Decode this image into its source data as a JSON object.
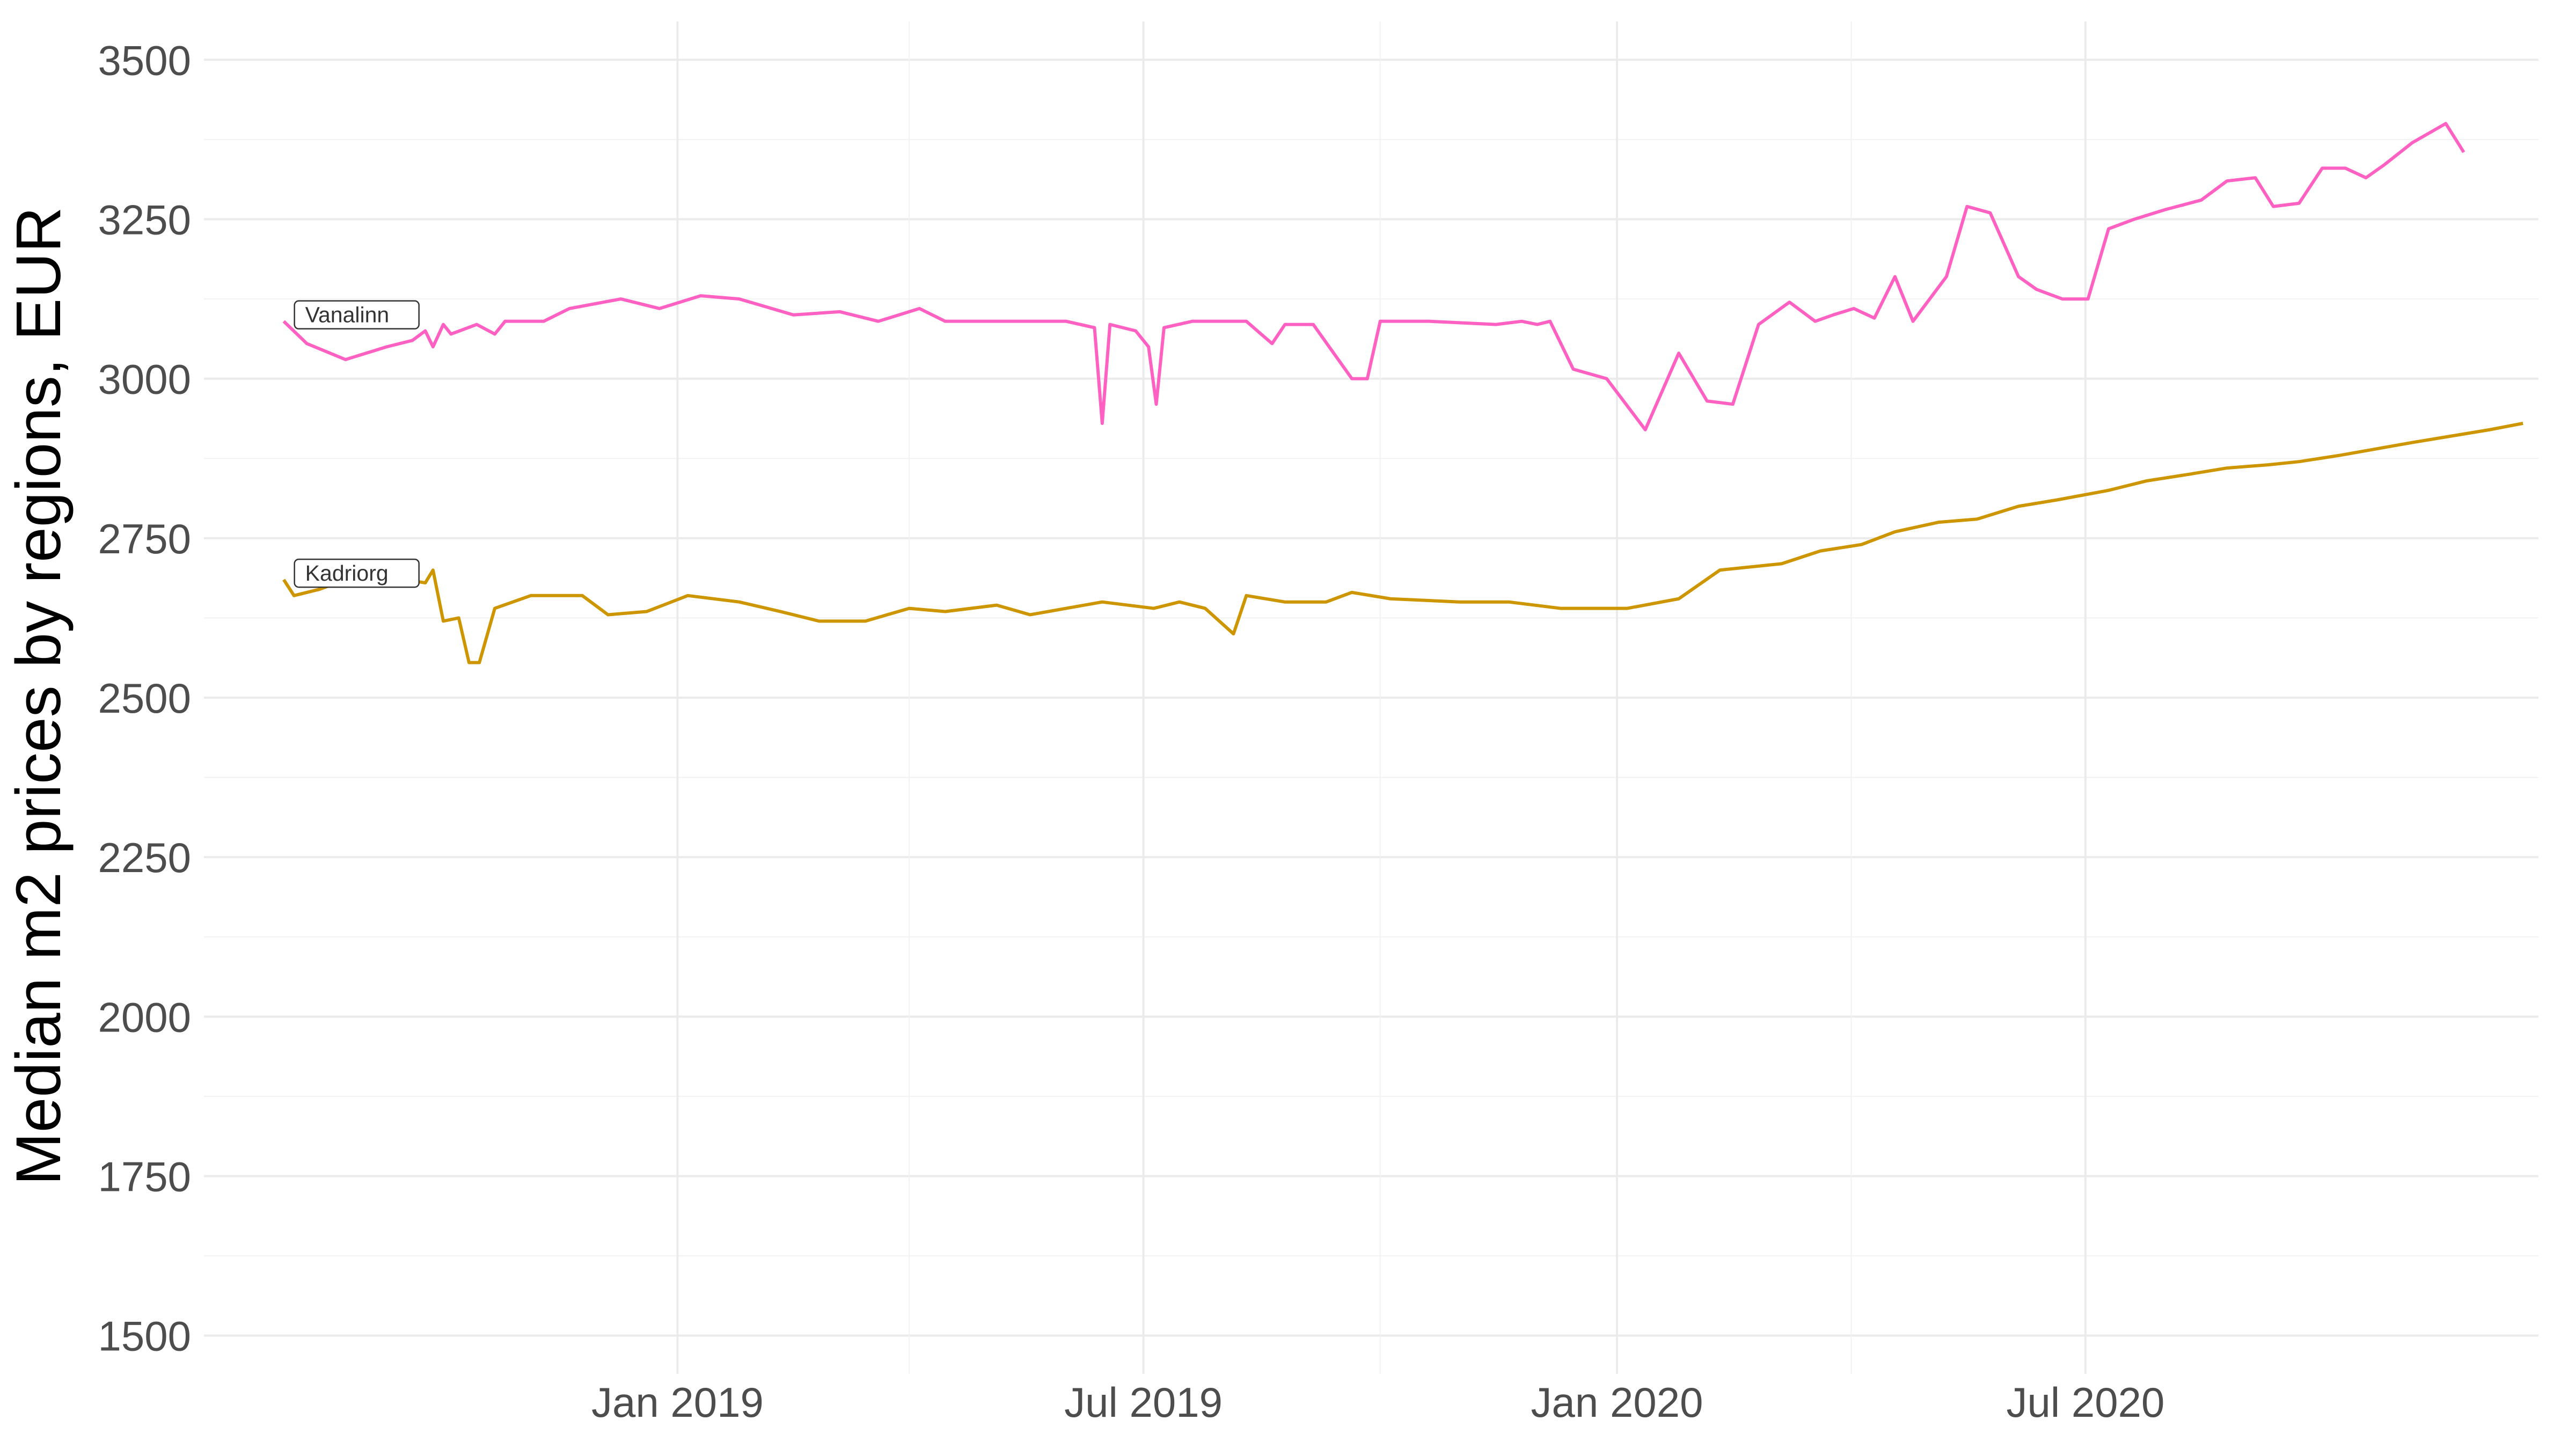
{
  "chart_data": {
    "type": "line",
    "ylabel": "Median m2 prices by regions, EUR",
    "xlabel": "",
    "ylim": [
      1440,
      3560
    ],
    "xlim": [
      "2018-07-01",
      "2020-12-24"
    ],
    "x_ticks": [
      {
        "date": "2019-01-01",
        "label": "Jan 2019"
      },
      {
        "date": "2019-07-01",
        "label": "Jul 2019"
      },
      {
        "date": "2020-01-01",
        "label": "Jan 2020"
      },
      {
        "date": "2020-07-01",
        "label": "Jul 2020"
      }
    ],
    "y_ticks": [
      1500,
      1750,
      2000,
      2250,
      2500,
      2750,
      3000,
      3250,
      3500
    ],
    "grid": true,
    "legend": "none",
    "series": [
      {
        "name": "Vanalinn",
        "color": "#FF61C3",
        "points": [
          [
            "2018-08-01",
            3090
          ],
          [
            "2018-08-10",
            3055
          ],
          [
            "2018-08-25",
            3030
          ],
          [
            "2018-09-10",
            3050
          ],
          [
            "2018-09-20",
            3060
          ],
          [
            "2018-09-25",
            3075
          ],
          [
            "2018-09-28",
            3050
          ],
          [
            "2018-10-02",
            3085
          ],
          [
            "2018-10-05",
            3070
          ],
          [
            "2018-10-15",
            3085
          ],
          [
            "2018-10-22",
            3070
          ],
          [
            "2018-10-26",
            3090
          ],
          [
            "2018-11-10",
            3090
          ],
          [
            "2018-11-20",
            3110
          ],
          [
            "2018-12-10",
            3125
          ],
          [
            "2018-12-25",
            3110
          ],
          [
            "2019-01-10",
            3130
          ],
          [
            "2019-01-25",
            3125
          ],
          [
            "2019-02-15",
            3100
          ],
          [
            "2019-03-05",
            3105
          ],
          [
            "2019-03-20",
            3090
          ],
          [
            "2019-04-05",
            3110
          ],
          [
            "2019-04-15",
            3090
          ],
          [
            "2019-05-15",
            3090
          ],
          [
            "2019-06-01",
            3090
          ],
          [
            "2019-06-12",
            3080
          ],
          [
            "2019-06-15",
            2930
          ],
          [
            "2019-06-18",
            3085
          ],
          [
            "2019-06-28",
            3075
          ],
          [
            "2019-07-03",
            3050
          ],
          [
            "2019-07-06",
            2960
          ],
          [
            "2019-07-09",
            3080
          ],
          [
            "2019-07-20",
            3090
          ],
          [
            "2019-08-10",
            3090
          ],
          [
            "2019-08-20",
            3055
          ],
          [
            "2019-08-25",
            3085
          ],
          [
            "2019-09-05",
            3085
          ],
          [
            "2019-09-20",
            3000
          ],
          [
            "2019-09-26",
            3000
          ],
          [
            "2019-10-01",
            3090
          ],
          [
            "2019-10-20",
            3090
          ],
          [
            "2019-11-15",
            3085
          ],
          [
            "2019-11-25",
            3090
          ],
          [
            "2019-12-01",
            3085
          ],
          [
            "2019-12-06",
            3090
          ],
          [
            "2019-12-15",
            3015
          ],
          [
            "2019-12-28",
            3000
          ],
          [
            "2020-01-12",
            2920
          ],
          [
            "2020-01-25",
            3040
          ],
          [
            "2020-02-05",
            2965
          ],
          [
            "2020-02-15",
            2960
          ],
          [
            "2020-02-25",
            3085
          ],
          [
            "2020-03-08",
            3120
          ],
          [
            "2020-03-18",
            3090
          ],
          [
            "2020-03-25",
            3100
          ],
          [
            "2020-04-02",
            3110
          ],
          [
            "2020-04-10",
            3095
          ],
          [
            "2020-04-18",
            3160
          ],
          [
            "2020-04-25",
            3090
          ],
          [
            "2020-05-08",
            3160
          ],
          [
            "2020-05-16",
            3270
          ],
          [
            "2020-05-25",
            3260
          ],
          [
            "2020-06-05",
            3160
          ],
          [
            "2020-06-12",
            3140
          ],
          [
            "2020-06-22",
            3125
          ],
          [
            "2020-07-02",
            3125
          ],
          [
            "2020-07-10",
            3235
          ],
          [
            "2020-07-20",
            3250
          ],
          [
            "2020-08-01",
            3265
          ],
          [
            "2020-08-15",
            3280
          ],
          [
            "2020-08-25",
            3310
          ],
          [
            "2020-09-05",
            3315
          ],
          [
            "2020-09-12",
            3270
          ],
          [
            "2020-09-22",
            3275
          ],
          [
            "2020-10-01",
            3330
          ],
          [
            "2020-10-10",
            3330
          ],
          [
            "2020-10-18",
            3315
          ],
          [
            "2020-10-25",
            3335
          ],
          [
            "2020-11-05",
            3370
          ],
          [
            "2020-11-18",
            3400
          ],
          [
            "2020-11-25",
            3355
          ]
        ]
      },
      {
        "name": "Kadriorg",
        "color": "#CD9600",
        "points": [
          [
            "2018-08-01",
            2685
          ],
          [
            "2018-08-05",
            2660
          ],
          [
            "2018-08-15",
            2670
          ],
          [
            "2018-08-25",
            2685
          ],
          [
            "2018-09-10",
            2690
          ],
          [
            "2018-09-25",
            2680
          ],
          [
            "2018-09-28",
            2700
          ],
          [
            "2018-10-02",
            2620
          ],
          [
            "2018-10-08",
            2625
          ],
          [
            "2018-10-12",
            2555
          ],
          [
            "2018-10-16",
            2555
          ],
          [
            "2018-10-22",
            2640
          ],
          [
            "2018-11-05",
            2660
          ],
          [
            "2018-11-25",
            2660
          ],
          [
            "2018-12-05",
            2630
          ],
          [
            "2018-12-20",
            2635
          ],
          [
            "2019-01-05",
            2660
          ],
          [
            "2019-01-25",
            2650
          ],
          [
            "2019-02-10",
            2635
          ],
          [
            "2019-02-25",
            2620
          ],
          [
            "2019-03-15",
            2620
          ],
          [
            "2019-04-01",
            2640
          ],
          [
            "2019-04-15",
            2635
          ],
          [
            "2019-05-05",
            2645
          ],
          [
            "2019-05-18",
            2630
          ],
          [
            "2019-06-01",
            2640
          ],
          [
            "2019-06-15",
            2650
          ],
          [
            "2019-07-05",
            2640
          ],
          [
            "2019-07-15",
            2650
          ],
          [
            "2019-07-25",
            2640
          ],
          [
            "2019-08-05",
            2600
          ],
          [
            "2019-08-10",
            2660
          ],
          [
            "2019-08-25",
            2650
          ],
          [
            "2019-09-10",
            2650
          ],
          [
            "2019-09-20",
            2665
          ],
          [
            "2019-10-05",
            2655
          ],
          [
            "2019-11-01",
            2650
          ],
          [
            "2019-11-20",
            2650
          ],
          [
            "2019-12-10",
            2640
          ],
          [
            "2020-01-05",
            2640
          ],
          [
            "2020-01-25",
            2655
          ],
          [
            "2020-02-10",
            2700
          ],
          [
            "2020-03-05",
            2710
          ],
          [
            "2020-03-20",
            2730
          ],
          [
            "2020-04-05",
            2740
          ],
          [
            "2020-04-18",
            2760
          ],
          [
            "2020-05-05",
            2775
          ],
          [
            "2020-05-20",
            2780
          ],
          [
            "2020-06-05",
            2800
          ],
          [
            "2020-06-20",
            2810
          ],
          [
            "2020-07-10",
            2825
          ],
          [
            "2020-07-25",
            2840
          ],
          [
            "2020-08-10",
            2850
          ],
          [
            "2020-08-25",
            2860
          ],
          [
            "2020-09-10",
            2865
          ],
          [
            "2020-09-22",
            2870
          ],
          [
            "2020-10-08",
            2880
          ],
          [
            "2020-10-22",
            2890
          ],
          [
            "2020-11-05",
            2900
          ],
          [
            "2020-11-20",
            2910
          ],
          [
            "2020-12-05",
            2920
          ],
          [
            "2020-12-18",
            2930
          ]
        ]
      }
    ]
  }
}
